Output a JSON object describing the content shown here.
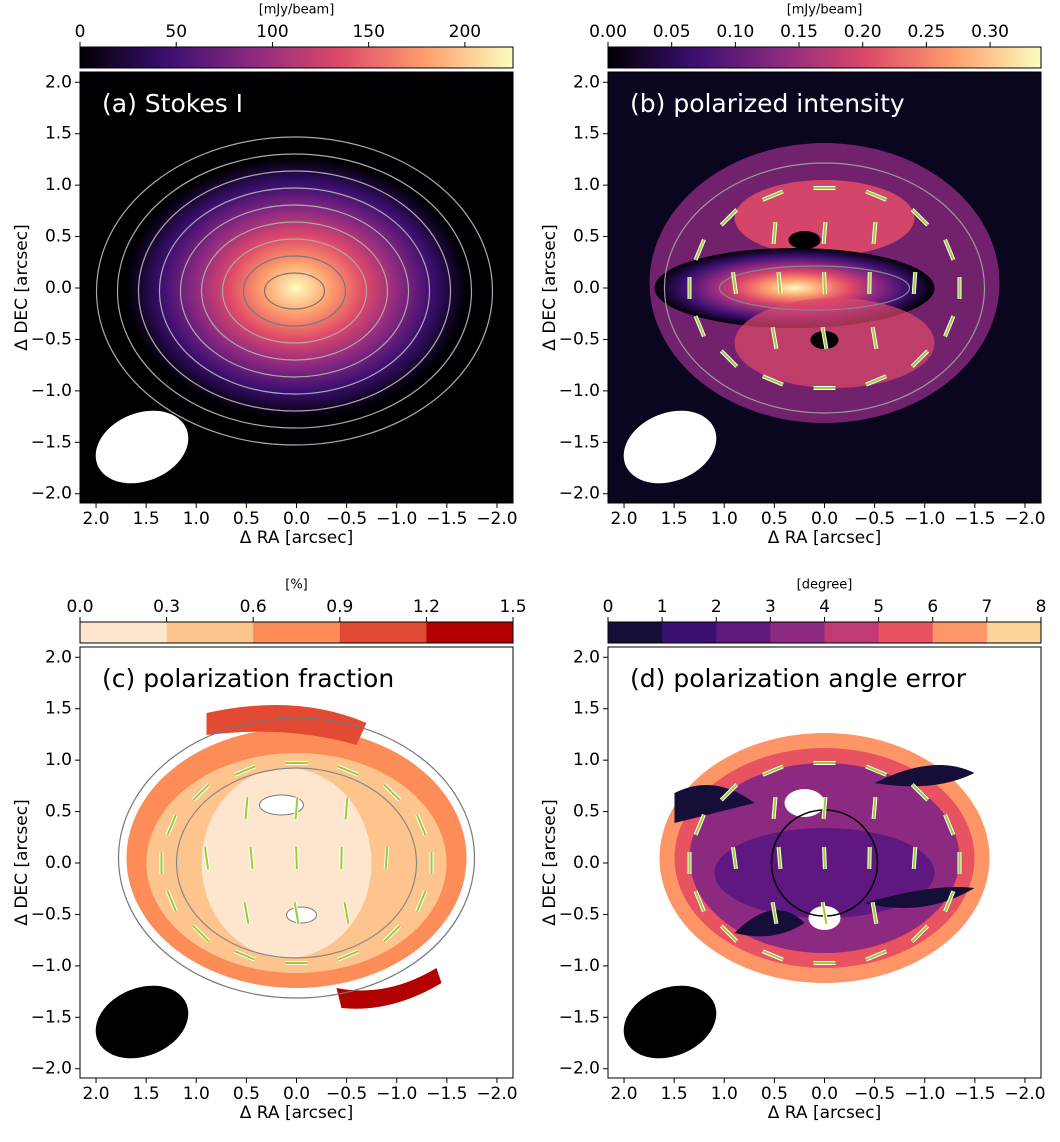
{
  "chart_data": [
    {
      "type": "image",
      "title": "(a) Stokes I",
      "xlabel": "Δ RA [arcsec]",
      "ylabel": "Δ DEC [arcsec]",
      "xlim": [
        2.16,
        -2.16
      ],
      "ylim": [
        -2.09,
        2.1
      ],
      "xticks": [
        {
          "value": 2,
          "label": "2.0"
        },
        {
          "value": 1.5,
          "label": "1.5"
        },
        {
          "value": 1,
          "label": "1.0"
        },
        {
          "value": 0.5,
          "label": "0.5"
        },
        {
          "value": 0,
          "label": "0.0"
        },
        {
          "value": -0.5,
          "label": "−0.5"
        },
        {
          "value": -1,
          "label": "−1.0"
        },
        {
          "value": -1.5,
          "label": "−1.5"
        },
        {
          "value": -2,
          "label": "−2.0"
        }
      ],
      "yticks": [
        {
          "value": -2,
          "label": "−2.0"
        },
        {
          "value": -1.5,
          "label": "−1.5"
        },
        {
          "value": -1,
          "label": "−1.0"
        },
        {
          "value": -0.5,
          "label": "−0.5"
        },
        {
          "value": 0,
          "label": "0.0"
        },
        {
          "value": 0.5,
          "label": "0.5"
        },
        {
          "value": 1,
          "label": "1.0"
        },
        {
          "value": 1.5,
          "label": "1.5"
        },
        {
          "value": 2,
          "label": "2.0"
        }
      ],
      "colorbar": {
        "label": "[mJy/beam]",
        "lim": [
          0,
          225
        ],
        "ticks": [
          0,
          50,
          100,
          150,
          200
        ],
        "discrete": false,
        "colors": [
          "#000004",
          "#3b0f70",
          "#8c2981",
          "#de4968",
          "#fe9f6d",
          "#fcfdbf"
        ]
      },
      "background": "#000004",
      "beam_color": "#ffffff",
      "title_color": "#ffffff"
    },
    {
      "type": "image",
      "title": "(b) polarized intensity",
      "xlabel": "Δ RA [arcsec]",
      "ylabel": "Δ DEC [arcsec]",
      "xlim": [
        2.16,
        -2.16
      ],
      "ylim": [
        -2.09,
        2.1
      ],
      "xticks": [
        {
          "value": 2,
          "label": "2.0"
        },
        {
          "value": 1.5,
          "label": "1.5"
        },
        {
          "value": 1,
          "label": "1.0"
        },
        {
          "value": 0.5,
          "label": "0.5"
        },
        {
          "value": 0,
          "label": "0.0"
        },
        {
          "value": -0.5,
          "label": "−0.5"
        },
        {
          "value": -1,
          "label": "−1.0"
        },
        {
          "value": -1.5,
          "label": "−1.5"
        },
        {
          "value": -2,
          "label": "−2.0"
        }
      ],
      "yticks": [
        {
          "value": -2,
          "label": "−2.0"
        },
        {
          "value": -1.5,
          "label": "−1.5"
        },
        {
          "value": -1,
          "label": "−1.0"
        },
        {
          "value": -0.5,
          "label": "−0.5"
        },
        {
          "value": 0,
          "label": "0.0"
        },
        {
          "value": 0.5,
          "label": "0.5"
        },
        {
          "value": 1,
          "label": "1.0"
        },
        {
          "value": 1.5,
          "label": "1.5"
        },
        {
          "value": 2,
          "label": "2.0"
        }
      ],
      "colorbar": {
        "label": "[mJy/beam]",
        "lim": [
          0,
          0.34
        ],
        "ticks": [
          {
            "value": 0,
            "label": "0.00"
          },
          0.05,
          {
            "value": 0.1,
            "label": "0.10"
          },
          0.15,
          {
            "value": 0.2,
            "label": "0.20"
          },
          0.25,
          {
            "value": 0.3,
            "label": "0.30"
          }
        ],
        "discrete": false,
        "colors": [
          "#000004",
          "#3b0f70",
          "#8c2981",
          "#de4968",
          "#fe9f6d",
          "#fcfdbf"
        ]
      },
      "background": "#0a0620",
      "beam_color": "#ffffff",
      "title_color": "#ffffff"
    },
    {
      "type": "image",
      "title": "(c) polarization fraction",
      "xlabel": "Δ RA [arcsec]",
      "ylabel": "Δ DEC [arcsec]",
      "xlim": [
        2.16,
        -2.16
      ],
      "ylim": [
        -2.09,
        2.1
      ],
      "xticks": [
        {
          "value": 2,
          "label": "2.0"
        },
        {
          "value": 1.5,
          "label": "1.5"
        },
        {
          "value": 1,
          "label": "1.0"
        },
        {
          "value": 0.5,
          "label": "0.5"
        },
        {
          "value": 0,
          "label": "0.0"
        },
        {
          "value": -0.5,
          "label": "−0.5"
        },
        {
          "value": -1,
          "label": "−1.0"
        },
        {
          "value": -1.5,
          "label": "−1.5"
        },
        {
          "value": -2,
          "label": "−2.0"
        }
      ],
      "yticks": [
        {
          "value": -2,
          "label": "−2.0"
        },
        {
          "value": -1.5,
          "label": "−1.5"
        },
        {
          "value": -1,
          "label": "−1.0"
        },
        {
          "value": -0.5,
          "label": "−0.5"
        },
        {
          "value": 0,
          "label": "0.0"
        },
        {
          "value": 0.5,
          "label": "0.5"
        },
        {
          "value": 1,
          "label": "1.0"
        },
        {
          "value": 1.5,
          "label": "1.5"
        },
        {
          "value": 2,
          "label": "2.0"
        }
      ],
      "colorbar": {
        "label": "[%]",
        "lim": [
          0,
          1.5
        ],
        "ticks": [
          {
            "value": 0,
            "label": "0.0"
          },
          0.3,
          0.6,
          0.9,
          1.2,
          1.5
        ],
        "discrete": true,
        "colors": [
          "#fee6ce",
          "#fdc48e",
          "#fc8d59",
          "#e34a33",
          "#b30000"
        ]
      },
      "background": "#ffffff",
      "beam_color": "#000000",
      "title_color": "#000000"
    },
    {
      "type": "image",
      "title": "(d) polarization angle error",
      "xlabel": "Δ RA [arcsec]",
      "ylabel": "Δ DEC [arcsec]",
      "xlim": [
        2.16,
        -2.16
      ],
      "ylim": [
        -2.09,
        2.1
      ],
      "xticks": [
        {
          "value": 2,
          "label": "2.0"
        },
        {
          "value": 1.5,
          "label": "1.5"
        },
        {
          "value": 1,
          "label": "1.0"
        },
        {
          "value": 0.5,
          "label": "0.5"
        },
        {
          "value": 0,
          "label": "0.0"
        },
        {
          "value": -0.5,
          "label": "−0.5"
        },
        {
          "value": -1,
          "label": "−1.0"
        },
        {
          "value": -1.5,
          "label": "−1.5"
        },
        {
          "value": -2,
          "label": "−2.0"
        }
      ],
      "yticks": [
        {
          "value": -2,
          "label": "−2.0"
        },
        {
          "value": -1.5,
          "label": "−1.5"
        },
        {
          "value": -1,
          "label": "−1.0"
        },
        {
          "value": -0.5,
          "label": "−0.5"
        },
        {
          "value": 0,
          "label": "0.0"
        },
        {
          "value": 0.5,
          "label": "0.5"
        },
        {
          "value": 1,
          "label": "1.0"
        },
        {
          "value": 1.5,
          "label": "1.5"
        },
        {
          "value": 2,
          "label": "2.0"
        }
      ],
      "colorbar": {
        "label": "[degree]",
        "lim": [
          0,
          8
        ],
        "ticks": [
          0,
          1,
          2,
          3,
          4,
          5,
          6,
          7,
          8
        ],
        "discrete": true,
        "colors": [
          "#150e38",
          "#3b0f70",
          "#5f187f",
          "#8c2981",
          "#c03a76",
          "#e85362",
          "#fd9567",
          "#fdd59b"
        ]
      },
      "background": "#ffffff",
      "beam_color": "#000000",
      "title_color": "#000000"
    }
  ]
}
